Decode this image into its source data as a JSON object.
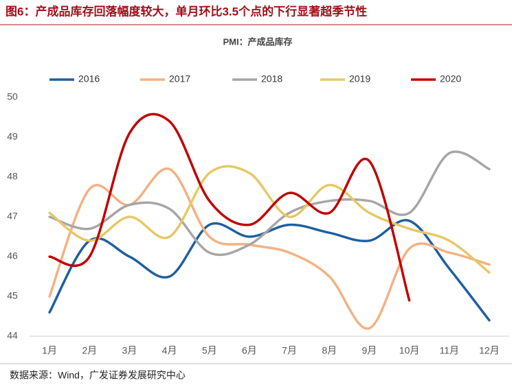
{
  "chart_data": {
    "type": "line",
    "title": "图6：产成品库存回落幅度较大，单月环比3.5个点的下行显著超季节性",
    "subtitle": "PMI：产成品库存",
    "source": "数据来源：Wind，广发证券发展研究中心",
    "categories": [
      "1月",
      "2月",
      "3月",
      "4月",
      "5月",
      "6月",
      "7月",
      "8月",
      "9月",
      "10月",
      "11月",
      "12月"
    ],
    "series": [
      {
        "name": "2016",
        "color": "#1f5f9e",
        "values": [
          44.6,
          46.4,
          46.0,
          45.5,
          46.8,
          46.5,
          46.8,
          46.6,
          46.4,
          46.9,
          45.7,
          44.4
        ]
      },
      {
        "name": "2017",
        "color": "#f4b183",
        "values": [
          45.0,
          47.7,
          47.3,
          48.2,
          46.5,
          46.3,
          46.1,
          45.5,
          44.2,
          46.2,
          46.1,
          45.8
        ]
      },
      {
        "name": "2018",
        "color": "#a6a6a6",
        "values": [
          47.0,
          46.7,
          47.3,
          47.2,
          46.1,
          46.3,
          47.1,
          47.4,
          47.4,
          47.1,
          48.6,
          48.2
        ]
      },
      {
        "name": "2019",
        "color": "#e6c865",
        "values": [
          47.1,
          46.4,
          47.0,
          46.5,
          48.1,
          48.1,
          47.0,
          47.8,
          47.1,
          46.7,
          46.4,
          45.6
        ]
      },
      {
        "name": "2020",
        "color": "#c00000",
        "values": [
          46.0,
          46.0,
          49.1,
          49.4,
          47.4,
          46.8,
          47.6,
          47.1,
          48.4,
          44.9,
          null,
          null
        ]
      }
    ],
    "ylim": [
      44,
      50
    ],
    "yticks": [
      44,
      45,
      46,
      47,
      48,
      49,
      50
    ],
    "grid": false,
    "smooth": true,
    "legend": "top"
  }
}
